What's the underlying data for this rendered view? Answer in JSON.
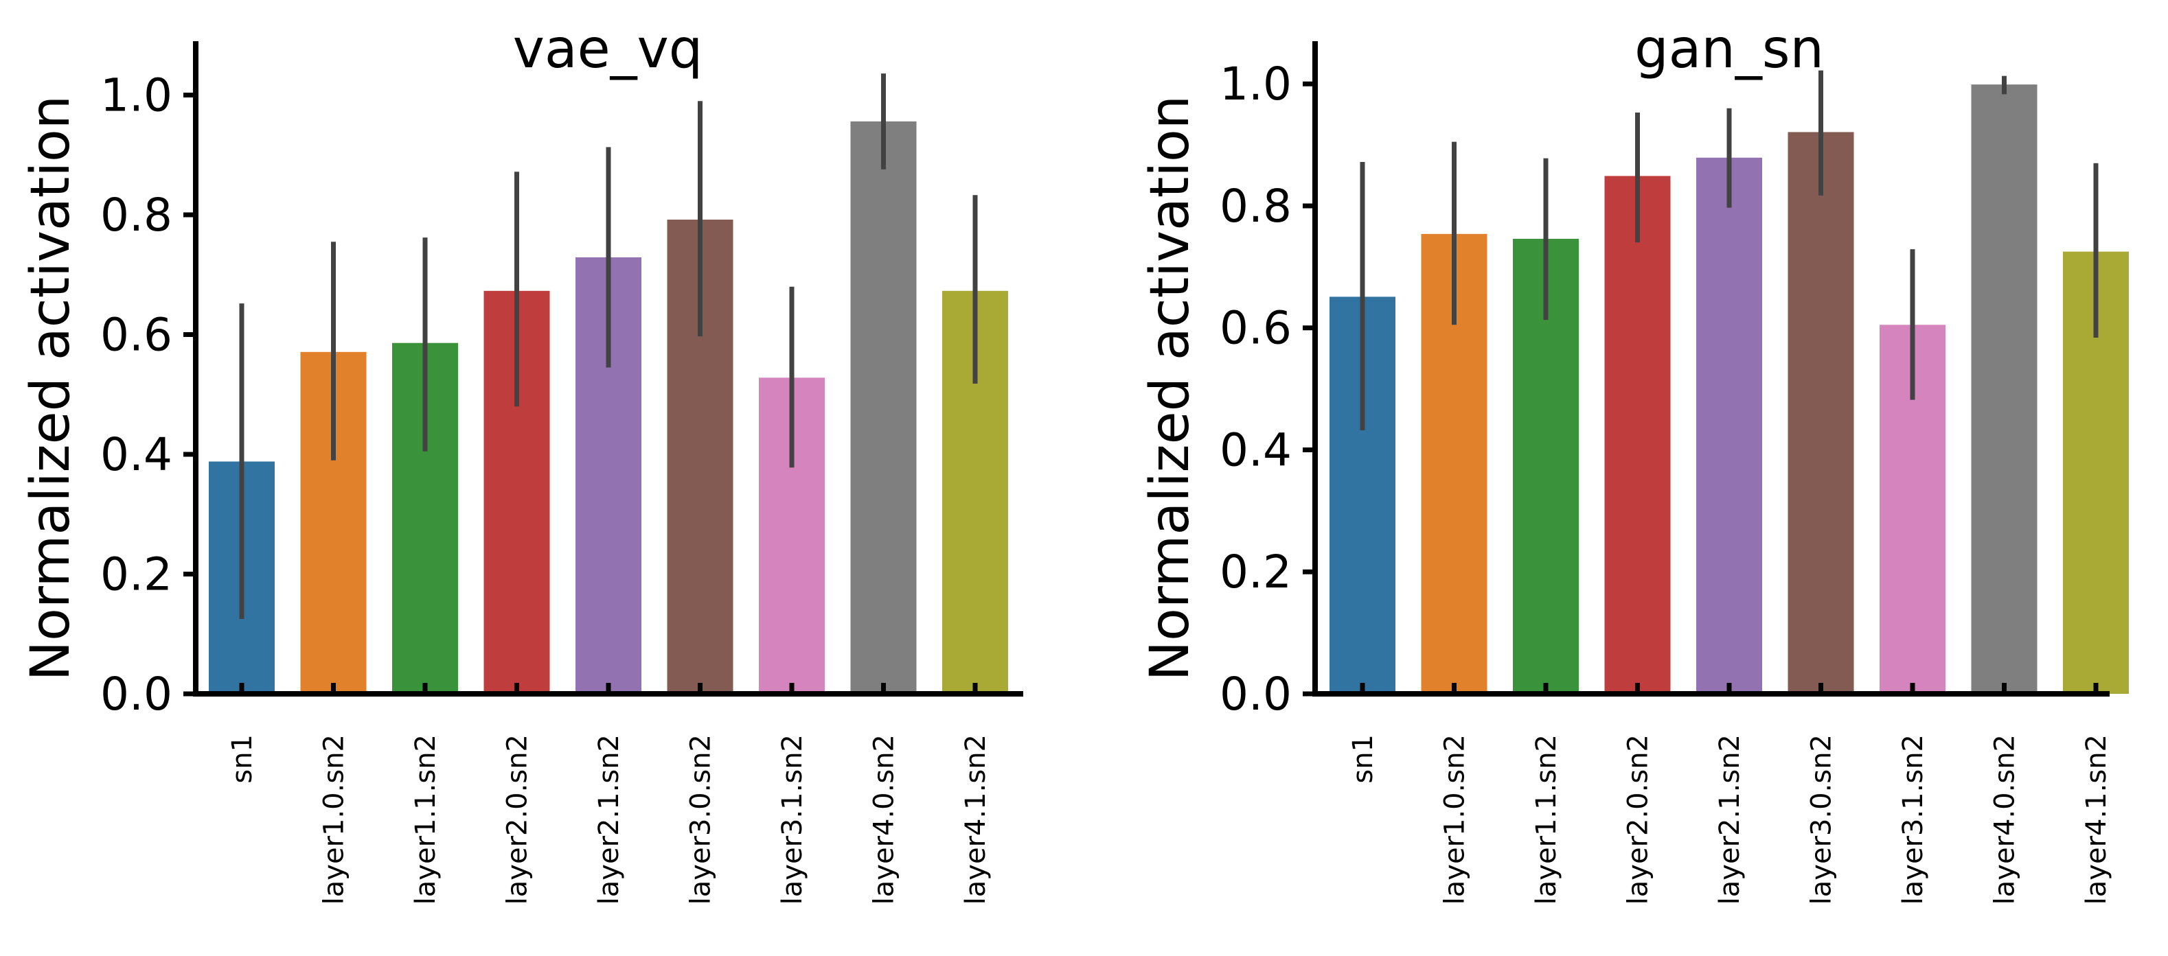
{
  "chart_data": [
    {
      "type": "bar",
      "title": "vae_vq",
      "xlabel": "",
      "ylabel": "Normalized activation",
      "ylim": [
        0,
        1.09
      ],
      "yticks": [
        "0.0",
        "0.2",
        "0.4",
        "0.6",
        "0.8",
        "1.0"
      ],
      "categories": [
        "sn1",
        "layer1.0.sn2",
        "layer1.1.sn2",
        "layer2.0.sn2",
        "layer2.1.sn2",
        "layer3.0.sn2",
        "layer3.1.sn2",
        "layer4.0.sn2",
        "layer4.1.sn2"
      ],
      "values": [
        0.388,
        0.571,
        0.586,
        0.673,
        0.729,
        0.792,
        0.528,
        0.956,
        0.673
      ],
      "error_low": [
        0.125,
        0.39,
        0.405,
        0.48,
        0.545,
        0.597,
        0.378,
        0.876,
        0.518
      ],
      "error_high": [
        0.652,
        0.755,
        0.762,
        0.872,
        0.913,
        0.99,
        0.68,
        1.036,
        0.833
      ],
      "colors": [
        "#3274a1",
        "#e1812c",
        "#3a923a",
        "#c03d3e",
        "#9372b2",
        "#845b53",
        "#d684bd",
        "#7f7f7f",
        "#a9aa35"
      ],
      "grid": false,
      "legend": "none"
    },
    {
      "type": "bar",
      "title": "gan_sn",
      "xlabel": "",
      "ylabel": "Normalized activation",
      "ylim": [
        0,
        1.07
      ],
      "yticks": [
        "0.0",
        "0.2",
        "0.4",
        "0.6",
        "0.8",
        "1.0"
      ],
      "categories": [
        "sn1",
        "layer1.0.sn2",
        "layer1.1.sn2",
        "layer2.0.sn2",
        "layer2.1.sn2",
        "layer3.0.sn2",
        "layer3.1.sn2",
        "layer4.0.sn2",
        "layer4.1.sn2"
      ],
      "values": [
        0.651,
        0.754,
        0.746,
        0.849,
        0.879,
        0.921,
        0.605,
        0.999,
        0.725
      ],
      "error_low": [
        0.432,
        0.605,
        0.613,
        0.74,
        0.797,
        0.817,
        0.482,
        0.983,
        0.584
      ],
      "error_high": [
        0.872,
        0.905,
        0.878,
        0.953,
        0.96,
        1.022,
        0.729,
        1.013,
        0.87
      ],
      "colors": [
        "#3274a1",
        "#e1812c",
        "#3a923a",
        "#c03d3e",
        "#9372b2",
        "#845b53",
        "#d684bd",
        "#7f7f7f",
        "#a9aa35"
      ],
      "grid": false,
      "legend": "none"
    }
  ]
}
